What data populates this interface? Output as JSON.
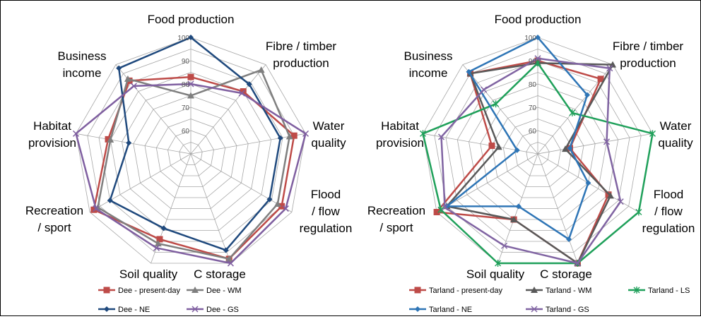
{
  "chart_data": [
    {
      "type": "radar",
      "categories": [
        "Food production",
        "Fibre / timber production",
        "Water quality",
        "Flood / flow regulation",
        "C storage",
        "Soil quality",
        "Recreation / sport",
        "Habitat provision",
        "Business income"
      ],
      "category_lines": [
        [
          "Food production"
        ],
        [
          "Fibre / timber",
          "production"
        ],
        [
          "Water",
          "quality"
        ],
        [
          "Flood",
          "/ flow",
          "regulation"
        ],
        [
          "C storage"
        ],
        [
          "Soil quality"
        ],
        [
          "Recreation",
          "/ sport"
        ],
        [
          "Habitat",
          "provision"
        ],
        [
          "Business",
          "income"
        ]
      ],
      "rlim": [
        50,
        100
      ],
      "ticks": [
        60,
        70,
        80,
        90,
        100
      ],
      "grid": true,
      "legend_position": "bottom",
      "series": [
        {
          "name": "Dee - present-day",
          "color": "#be4b48",
          "marker": "square",
          "values": [
            83,
            85,
            95,
            95,
            98,
            89,
            98,
            86,
            91
          ]
        },
        {
          "name": "Dee - WM",
          "color": "#7f7f7f",
          "marker": "triangle",
          "values": [
            75,
            97,
            93,
            93,
            98,
            91,
            96,
            85,
            92
          ]
        },
        {
          "name": "Dee - NE",
          "color": "#1f497d",
          "marker": "diamond",
          "values": [
            100,
            89,
            89,
            89,
            94,
            84,
            90,
            77,
            98
          ]
        },
        {
          "name": "Dee - GS",
          "color": "#7f5fa0",
          "marker": "x",
          "values": [
            80,
            84,
            100,
            97,
            100,
            93,
            97,
            100,
            88
          ]
        }
      ]
    },
    {
      "type": "radar",
      "categories": [
        "Food production",
        "Fibre / timber production",
        "Water quality",
        "Flood / flow regulation",
        "C storage",
        "Soil quality",
        "Recreation / sport",
        "Habitat provision",
        "Business income"
      ],
      "category_lines": [
        [
          "Food production"
        ],
        [
          "Fibre / timber",
          "production"
        ],
        [
          "Water",
          "quality"
        ],
        [
          "Flood",
          "/ flow",
          "regulation"
        ],
        [
          "C storage"
        ],
        [
          "Soil quality"
        ],
        [
          "Recreation",
          "/ sport"
        ],
        [
          "Habitat",
          "provision"
        ],
        [
          "Business",
          "income"
        ]
      ],
      "rlim": [
        50,
        100
      ],
      "ticks": [
        60,
        70,
        80,
        90,
        100
      ],
      "grid": true,
      "legend_position": "bottom",
      "series": [
        {
          "name": "Tarland - present-day",
          "color": "#be4b48",
          "marker": "square",
          "values": [
            90,
            92,
            64,
            85,
            100,
            80,
            100,
            70,
            95
          ]
        },
        {
          "name": "Tarland - WM",
          "color": "#595959",
          "marker": "triangle",
          "values": [
            89,
            100,
            62,
            86,
            100,
            80,
            95,
            67,
            95
          ]
        },
        {
          "name": "Tarland - LS",
          "color": "#1fa05a",
          "marker": "asterisk",
          "values": [
            89,
            73,
            100,
            100,
            100,
            100,
            98,
            100,
            78
          ]
        },
        {
          "name": "Tarland - NE",
          "color": "#2e75b6",
          "marker": "diamond",
          "values": [
            100,
            83,
            64,
            75,
            89,
            74,
            95,
            59,
            96
          ]
        },
        {
          "name": "Tarland - GS",
          "color": "#8064a2",
          "marker": "x",
          "values": [
            91,
            98,
            80,
            91,
            100,
            92,
            96,
            92,
            86
          ]
        }
      ]
    }
  ]
}
